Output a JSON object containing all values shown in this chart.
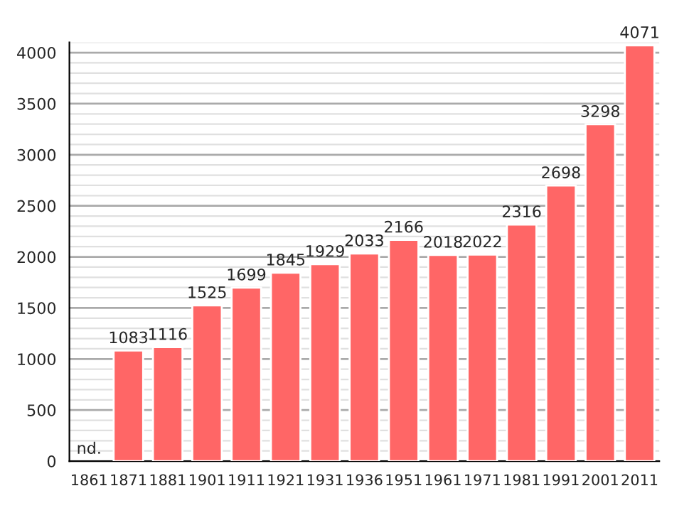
{
  "chart_data": {
    "type": "bar",
    "categories": [
      "1861",
      "1871",
      "1881",
      "1901",
      "1911",
      "1921",
      "1931",
      "1936",
      "1951",
      "1961",
      "1971",
      "1981",
      "1991",
      "2001",
      "2011"
    ],
    "values": [
      null,
      1083,
      1116,
      1525,
      1699,
      1845,
      1929,
      2033,
      2166,
      2018,
      2022,
      2316,
      2698,
      3298,
      4071
    ],
    "value_labels": [
      "nd.",
      "1083",
      "1116",
      "1525",
      "1699",
      "1845",
      "1929",
      "2033",
      "2166",
      "2018",
      "2022",
      "2316",
      "2698",
      "3298",
      "4071"
    ],
    "color": "#ff6666",
    "ylim": [
      0,
      4100
    ],
    "yticks": [
      0,
      {
        "value": 100,
        "label": null
      },
      {
        "value": 200,
        "label": null
      },
      {
        "value": 300,
        "label": null
      },
      {
        "value": 400,
        "label": null
      },
      500,
      {
        "value": 600,
        "label": null
      },
      {
        "value": 700,
        "label": null
      },
      {
        "value": 800,
        "label": null
      },
      {
        "value": 900,
        "label": null
      },
      1000,
      {
        "value": 1100,
        "label": null
      },
      {
        "value": 1200,
        "label": null
      },
      {
        "value": 1300,
        "label": null
      },
      {
        "value": 1400,
        "label": null
      },
      1500,
      {
        "value": 1600,
        "label": null
      },
      {
        "value": 1700,
        "label": null
      },
      {
        "value": 1800,
        "label": null
      },
      {
        "value": 1900,
        "label": null
      },
      2000,
      {
        "value": 2100,
        "label": null
      },
      {
        "value": 2200,
        "label": null
      },
      {
        "value": 2300,
        "label": null
      },
      {
        "value": 2400,
        "label": null
      },
      2500,
      {
        "value": 2600,
        "label": null
      },
      {
        "value": 2700,
        "label": null
      },
      {
        "value": 2800,
        "label": null
      },
      {
        "value": 2900,
        "label": null
      },
      3000,
      {
        "value": 3100,
        "label": null
      },
      {
        "value": 3200,
        "label": null
      },
      {
        "value": 3300,
        "label": null
      },
      {
        "value": 3400,
        "label": null
      },
      3500,
      {
        "value": 3600,
        "label": null
      },
      {
        "value": 3700,
        "label": null
      },
      {
        "value": 3800,
        "label": null
      },
      {
        "value": 3900,
        "label": null
      },
      4000,
      {
        "value": 4100,
        "label": null
      }
    ],
    "grid": "y"
  }
}
